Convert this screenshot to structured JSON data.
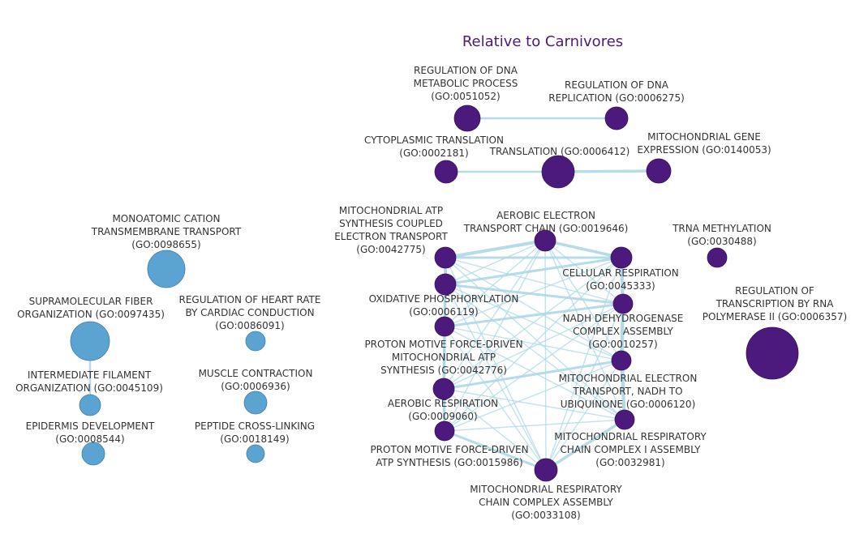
{
  "title": "Relative to Carnivores",
  "colors": {
    "title": "#4b1a7c",
    "node_purple": "#4b1a7c",
    "node_blue": "#5ba3d0",
    "edge": "#add8e6"
  },
  "nodes": [
    {
      "id": "go0051052",
      "cluster": "purple",
      "label_lines": [
        "REGULATION OF DNA",
        "METABOLIC PROCESS",
        "(GO:0051052)"
      ]
    },
    {
      "id": "go0006275",
      "cluster": "purple",
      "label_lines": [
        "REGULATION OF DNA",
        "REPLICATION (GO:0006275)"
      ]
    },
    {
      "id": "go0002181",
      "cluster": "purple",
      "label_lines": [
        "CYTOPLASMIC TRANSLATION",
        "(GO:0002181)"
      ]
    },
    {
      "id": "go0006412",
      "cluster": "purple",
      "label_lines": [
        "TRANSLATION (GO:0006412)"
      ]
    },
    {
      "id": "go0140053",
      "cluster": "purple",
      "label_lines": [
        "MITOCHONDRIAL GENE",
        "EXPRESSION (GO:0140053)"
      ]
    },
    {
      "id": "go0042775",
      "cluster": "purple",
      "label_lines": [
        "MITOCHONDRIAL ATP",
        "SYNTHESIS COUPLED",
        "ELECTRON TRANSPORT",
        "(GO:0042775)"
      ]
    },
    {
      "id": "go0019646",
      "cluster": "purple",
      "label_lines": [
        "AEROBIC ELECTRON",
        "TRANSPORT CHAIN (GO:0019646)"
      ]
    },
    {
      "id": "go0030488",
      "cluster": "purple",
      "label_lines": [
        "TRNA METHYLATION",
        "(GO:0030488)"
      ]
    },
    {
      "id": "go0045333",
      "cluster": "purple",
      "label_lines": [
        "CELLULAR RESPIRATION",
        "(GO:0045333)"
      ]
    },
    {
      "id": "go0006119",
      "cluster": "purple",
      "label_lines": [
        "OXIDATIVE PHOSPHORYLATION",
        "(GO:0006119)"
      ]
    },
    {
      "id": "go0006357",
      "cluster": "purple",
      "label_lines": [
        "REGULATION OF",
        "TRANSCRIPTION BY RNA",
        "POLYMERASE II (GO:0006357)"
      ]
    },
    {
      "id": "go0010257",
      "cluster": "purple",
      "label_lines": [
        "NADH DEHYDROGENASE",
        "COMPLEX ASSEMBLY",
        "(GO:0010257)"
      ]
    },
    {
      "id": "go0042776",
      "cluster": "purple",
      "label_lines": [
        "PROTON MOTIVE FORCE-DRIVEN",
        "MITOCHONDRIAL ATP",
        "SYNTHESIS (GO:0042776)"
      ]
    },
    {
      "id": "go0006120",
      "cluster": "purple",
      "label_lines": [
        "MITOCHONDRIAL ELECTRON",
        "TRANSPORT, NADH TO",
        "UBIQUINONE (GO:0006120)"
      ]
    },
    {
      "id": "go0009060",
      "cluster": "purple",
      "label_lines": [
        "AEROBIC RESPIRATION",
        "(GO:0009060)"
      ]
    },
    {
      "id": "go0032981",
      "cluster": "purple",
      "label_lines": [
        "MITOCHONDRIAL RESPIRATORY",
        "CHAIN COMPLEX I ASSEMBLY",
        "(GO:0032981)"
      ]
    },
    {
      "id": "go0015986",
      "cluster": "purple",
      "label_lines": [
        "PROTON MOTIVE FORCE-DRIVEN",
        "ATP SYNTHESIS (GO:0015986)"
      ]
    },
    {
      "id": "go0033108",
      "cluster": "purple",
      "label_lines": [
        "MITOCHONDRIAL RESPIRATORY",
        "CHAIN COMPLEX ASSEMBLY",
        "(GO:0033108)"
      ]
    },
    {
      "id": "go0098655",
      "cluster": "blue",
      "label_lines": [
        "MONOATOMIC CATION",
        "TRANSMEMBRANE TRANSPORT",
        "(GO:0098655)"
      ]
    },
    {
      "id": "go0097435",
      "cluster": "blue",
      "label_lines": [
        "SUPRAMOLECULAR FIBER",
        "ORGANIZATION (GO:0097435)"
      ]
    },
    {
      "id": "go0086091",
      "cluster": "blue",
      "label_lines": [
        "REGULATION OF HEART RATE",
        "BY CARDIAC CONDUCTION",
        "(GO:0086091)"
      ]
    },
    {
      "id": "go0045109",
      "cluster": "blue",
      "label_lines": [
        "INTERMEDIATE FILAMENT",
        "ORGANIZATION (GO:0045109)"
      ]
    },
    {
      "id": "go0006936",
      "cluster": "blue",
      "label_lines": [
        "MUSCLE CONTRACTION",
        "(GO:0006936)"
      ]
    },
    {
      "id": "go0008544",
      "cluster": "blue",
      "label_lines": [
        "EPIDERMIS DEVELOPMENT",
        "(GO:0008544)"
      ]
    },
    {
      "id": "go0018149",
      "cluster": "blue",
      "label_lines": [
        "PEPTIDE CROSS-LINKING",
        "(GO:0018149)"
      ]
    }
  ],
  "edges": [
    [
      "go0051052",
      "go0006275"
    ],
    [
      "go0002181",
      "go0006412"
    ],
    [
      "go0006412",
      "go0140053"
    ],
    [
      "go0097435",
      "go0045109"
    ],
    [
      "go0042775",
      "go0019646"
    ],
    [
      "go0042775",
      "go0045333"
    ],
    [
      "go0042775",
      "go0006119"
    ],
    [
      "go0042775",
      "go0010257"
    ],
    [
      "go0042775",
      "go0042776"
    ],
    [
      "go0042775",
      "go0006120"
    ],
    [
      "go0042775",
      "go0009060"
    ],
    [
      "go0042775",
      "go0032981"
    ],
    [
      "go0042775",
      "go0015986"
    ],
    [
      "go0042775",
      "go0033108"
    ],
    [
      "go0019646",
      "go0006119"
    ],
    [
      "go0019646",
      "go0045333"
    ],
    [
      "go0019646",
      "go0010257"
    ],
    [
      "go0019646",
      "go0042776"
    ],
    [
      "go0019646",
      "go0006120"
    ],
    [
      "go0019646",
      "go0009060"
    ],
    [
      "go0019646",
      "go0032981"
    ],
    [
      "go0019646",
      "go0015986"
    ],
    [
      "go0019646",
      "go0033108"
    ],
    [
      "go0006119",
      "go0045333"
    ],
    [
      "go0006119",
      "go0010257"
    ],
    [
      "go0006119",
      "go0042776"
    ],
    [
      "go0006119",
      "go0006120"
    ],
    [
      "go0006119",
      "go0009060"
    ],
    [
      "go0006119",
      "go0032981"
    ],
    [
      "go0006119",
      "go0015986"
    ],
    [
      "go0006119",
      "go0033108"
    ],
    [
      "go0045333",
      "go0042776"
    ],
    [
      "go0045333",
      "go0010257"
    ],
    [
      "go0045333",
      "go0006120"
    ],
    [
      "go0045333",
      "go0009060"
    ],
    [
      "go0045333",
      "go0015986"
    ],
    [
      "go0045333",
      "go0033108"
    ],
    [
      "go0042776",
      "go0010257"
    ],
    [
      "go0042776",
      "go0006120"
    ],
    [
      "go0042776",
      "go0009060"
    ],
    [
      "go0042776",
      "go0032981"
    ],
    [
      "go0042776",
      "go0015986"
    ],
    [
      "go0042776",
      "go0033108"
    ],
    [
      "go0010257",
      "go0006120"
    ],
    [
      "go0010257",
      "go0009060"
    ],
    [
      "go0010257",
      "go0032981"
    ],
    [
      "go0010257",
      "go0015986"
    ],
    [
      "go0010257",
      "go0033108"
    ],
    [
      "go0006120",
      "go0009060"
    ],
    [
      "go0006120",
      "go0032981"
    ],
    [
      "go0006120",
      "go0015986"
    ],
    [
      "go0006120",
      "go0033108"
    ],
    [
      "go0009060",
      "go0032981"
    ],
    [
      "go0009060",
      "go0015986"
    ],
    [
      "go0009060",
      "go0033108"
    ],
    [
      "go0032981",
      "go0015986"
    ],
    [
      "go0032981",
      "go0033108"
    ],
    [
      "go0015986",
      "go0033108"
    ]
  ]
}
